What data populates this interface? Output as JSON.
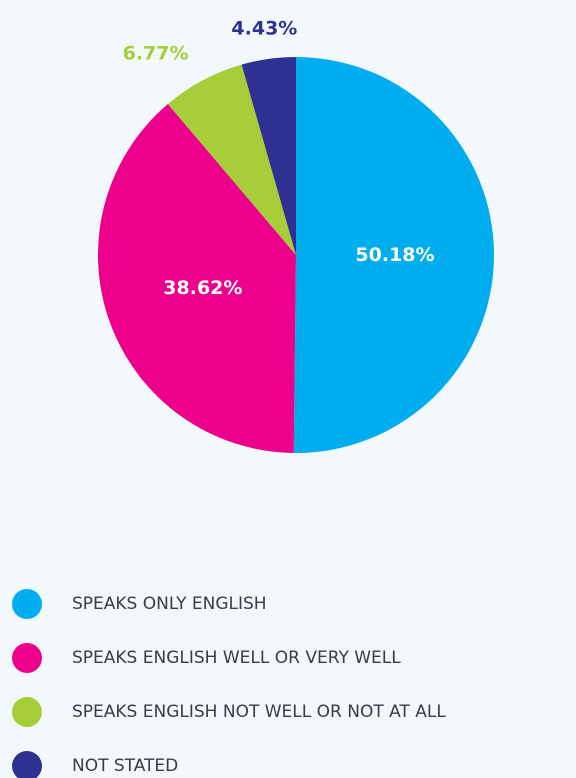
{
  "chart_data": {
    "type": "pie",
    "categories": [
      "SPEAKS ONLY ENGLISH",
      "SPEAKS ENGLISH WELL OR VERY WELL",
      "SPEAKS ENGLISH NOT WELL OR NOT AT ALL",
      "NOT STATED"
    ],
    "values": [
      50.18,
      38.62,
      6.77,
      4.43
    ],
    "value_labels": [
      "50.18%",
      "38.62%",
      "6.77%",
      "4.43%"
    ],
    "colors": [
      "#00aeef",
      "#ec008c",
      "#a6ce39",
      "#2e3192"
    ]
  }
}
